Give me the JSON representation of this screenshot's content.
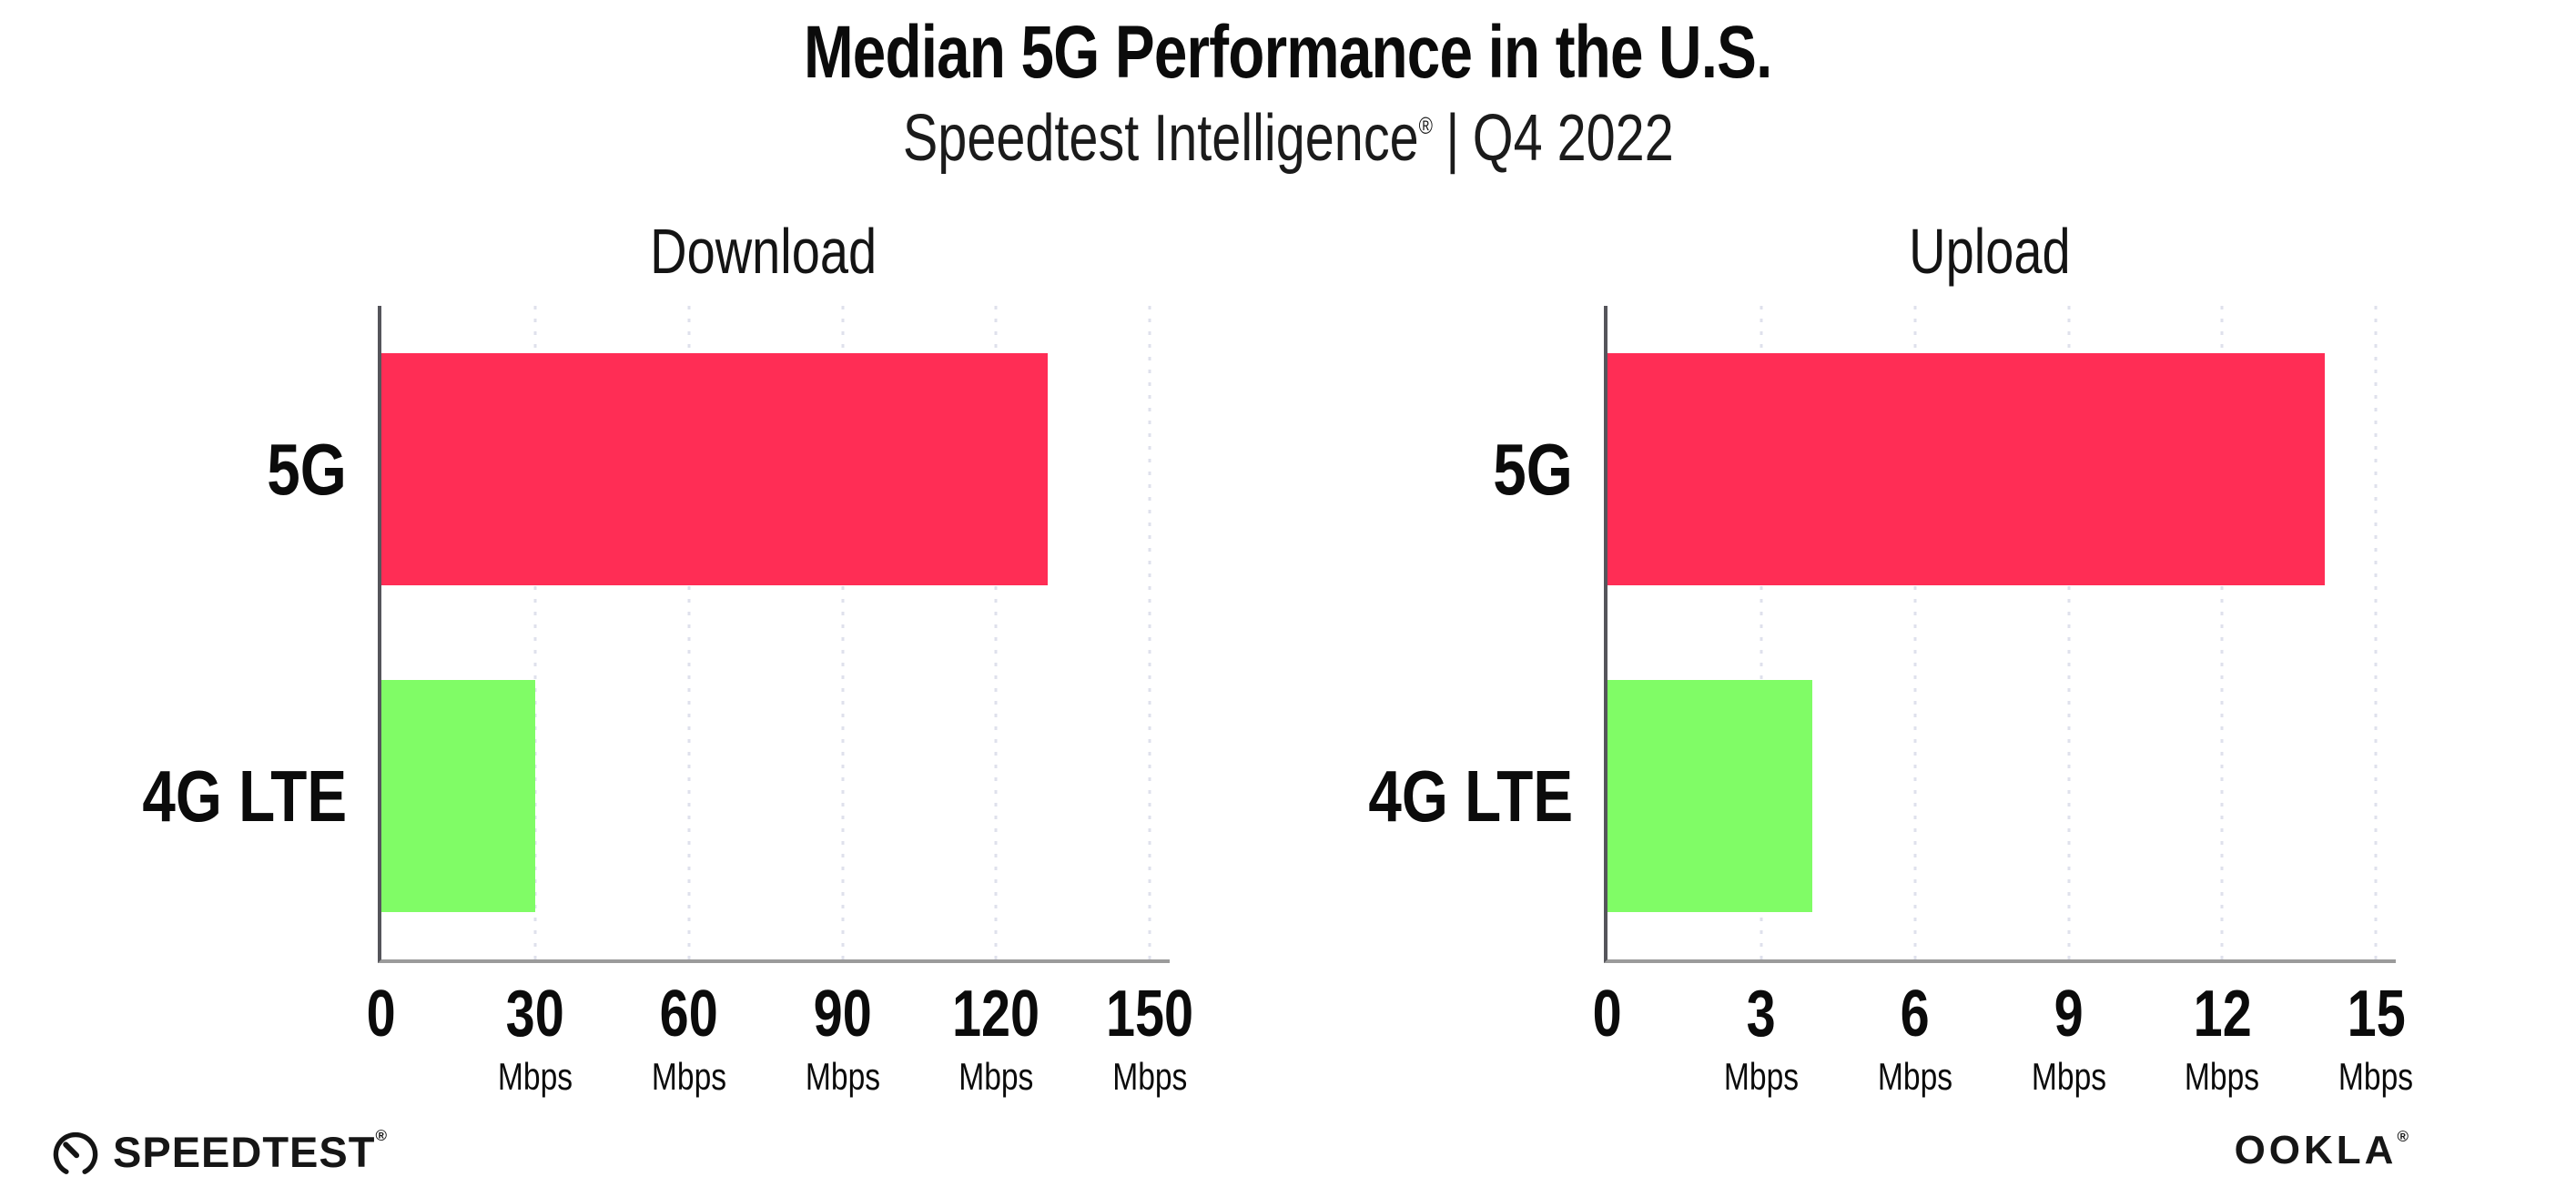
{
  "header": {
    "title": "Median 5G Performance in the U.S.",
    "subtitle_brand": "Speedtest Intelligence",
    "subtitle_reg": "®",
    "subtitle_sep": "|",
    "subtitle_period": "Q4 2022"
  },
  "chart_data": [
    {
      "type": "bar",
      "orientation": "horizontal",
      "title": "Download",
      "categories": [
        "5G",
        "4G LTE"
      ],
      "values": [
        130,
        30
      ],
      "unit": "Mbps",
      "xticks": [
        0,
        30,
        60,
        90,
        120,
        150
      ],
      "xlim": [
        0,
        150
      ],
      "bar_colors": [
        "#ff2d55",
        "#80fc66"
      ],
      "grid": "dotted-vertical",
      "legend": "none"
    },
    {
      "type": "bar",
      "orientation": "horizontal",
      "title": "Upload",
      "categories": [
        "5G",
        "4G LTE"
      ],
      "values": [
        14,
        4
      ],
      "unit": "Mbps",
      "xticks": [
        0,
        3,
        6,
        9,
        12,
        15
      ],
      "xlim": [
        0,
        15
      ],
      "bar_colors": [
        "#ff2d55",
        "#80fc66"
      ],
      "grid": "dotted-vertical",
      "legend": "none"
    }
  ],
  "colors": {
    "bar_5g": "#ff2d55",
    "bar_4g_lte": "#80fc66",
    "gridline": "#dfe1ec",
    "axis_left": "#55555b",
    "axis_bottom": "#9b9b9b",
    "text": "#0b0b0b"
  },
  "footer": {
    "speedtest_text": "SPEEDTEST",
    "speedtest_reg": "®",
    "ookla_text": "OOKLA",
    "ookla_reg": "®"
  }
}
